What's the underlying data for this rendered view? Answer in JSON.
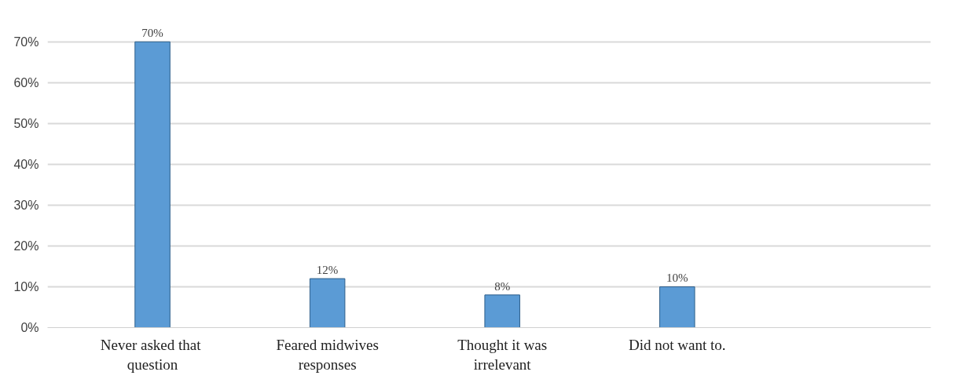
{
  "chart_data": {
    "type": "bar",
    "categories": [
      "Never  asked that question",
      "Feared midwives responses",
      "Thought it was irrelevant",
      "Did not want to."
    ],
    "values": [
      70,
      12,
      8,
      10
    ],
    "value_labels": [
      "70%",
      "12%",
      "8%",
      "10%"
    ],
    "color": "#5b9bd5",
    "ylim": [
      0,
      70
    ],
    "yticks": [
      {
        "value": 0,
        "label": "0%"
      },
      {
        "value": 10,
        "label": "10%"
      },
      {
        "value": 20,
        "label": "20%"
      },
      {
        "value": 30,
        "label": "30%"
      },
      {
        "value": 40,
        "label": "40%"
      },
      {
        "value": 50,
        "label": "50%"
      },
      {
        "value": 60,
        "label": "60%"
      },
      {
        "value": 70,
        "label": "70%"
      }
    ],
    "grid": "y"
  }
}
